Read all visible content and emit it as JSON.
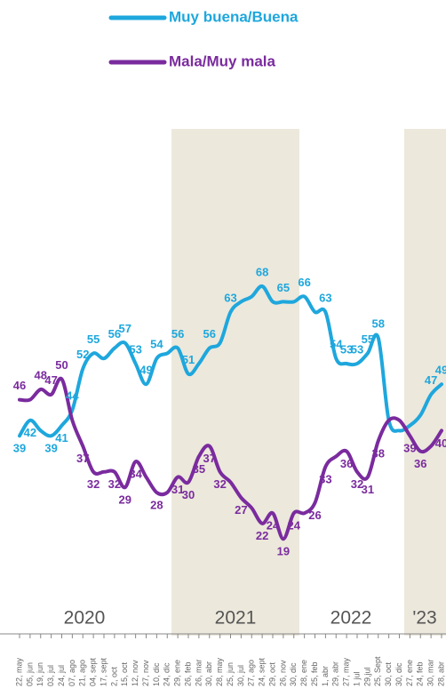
{
  "chart_data": {
    "type": "line",
    "categories": [
      "22, may",
      "05, jun",
      "19, jun",
      "03, jul",
      "24, jul",
      "07, ago",
      "21, ago",
      "04, sept",
      "17, sept",
      "2, oct",
      "15, oct",
      "12, nov",
      "27, nov",
      "10, dic",
      "24, dic",
      "29, ene",
      "26, feb",
      "26, mar",
      "30, abr",
      "28, may",
      "25, jun",
      "30, jul",
      "27, ago",
      "24, sept",
      "29, oct",
      "26, nov",
      "30, dic",
      "28, ene",
      "25, feb",
      "1, abr",
      "29, abr",
      "27, may",
      "1 jul",
      "29,jul",
      "25, Sept",
      "30, oct",
      "30, dic",
      "27, ene",
      "24, feb",
      "30, mar",
      "28, abr"
    ],
    "periods": [
      "2020",
      "2021",
      "2022",
      "'23"
    ],
    "series": [
      {
        "name": "Muy buena/Buena",
        "color": "#1ea7dd",
        "values": [
          39,
          42,
          40,
          39,
          41,
          44,
          52,
          55,
          54,
          56,
          57,
          53,
          49,
          54,
          55,
          56,
          51,
          53,
          56,
          57,
          63,
          65,
          66,
          68,
          65,
          65,
          65,
          66,
          63,
          63,
          54,
          53,
          53,
          55,
          58,
          42,
          40,
          41,
          43,
          47,
          49
        ],
        "value_labels": [
          "39",
          "42",
          null,
          "39",
          "41",
          "44",
          "52",
          "55",
          null,
          "56",
          "57",
          "53",
          "49",
          "54",
          null,
          "56",
          "51",
          null,
          "56",
          null,
          "63",
          null,
          null,
          "68",
          null,
          "65",
          null,
          "66",
          null,
          "63",
          "54",
          "53",
          "53",
          "55",
          "58",
          null,
          null,
          null,
          null,
          "47",
          "49"
        ]
      },
      {
        "name": "Mala/Muy mala",
        "color": "#7a2b9e",
        "values": [
          46,
          46,
          48,
          47,
          50,
          42,
          37,
          32,
          32,
          32,
          29,
          34,
          31,
          28,
          28,
          31,
          30,
          35,
          37,
          32,
          30,
          27,
          25,
          22,
          24,
          19,
          24,
          24,
          26,
          33,
          35,
          36,
          32,
          31,
          38,
          42,
          42,
          39,
          36,
          37,
          40
        ],
        "value_labels": [
          "46",
          null,
          "48",
          "47",
          "50",
          null,
          "37",
          "32",
          null,
          "32",
          "29",
          "34",
          null,
          "28",
          null,
          "31",
          "30",
          "35",
          "37",
          "32",
          null,
          "27",
          null,
          "22",
          "24",
          "19",
          "24",
          null,
          "26",
          "33",
          null,
          "36",
          "32",
          "31",
          "38",
          null,
          null,
          "39",
          "36",
          null,
          "40"
        ]
      }
    ]
  }
}
